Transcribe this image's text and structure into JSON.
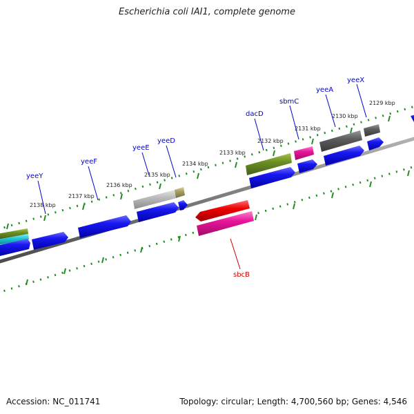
{
  "title": "Escherichia coli IAI1, complete genome",
  "footer": {
    "accession": "Accession: NC_011741",
    "summary": "Topology: circular; Length: 4,700,560 bp; Genes: 4,546"
  },
  "colors": {
    "backbone": "#808080",
    "tick": "#228B22",
    "label_top": "#0000CC",
    "label_bottom": "#CC0000",
    "blue_gene": "#0000EE",
    "olive": "#6B8E23",
    "magenta": "#E0149A",
    "gray_dark": "#5A5A5A",
    "gray_light": "#B8B8B8",
    "khaki": "#A8A060",
    "cyan": "#22C8D8",
    "red": "#EE0000"
  },
  "kbp_labels": [
    "2138 kbp",
    "2137 kbp",
    "2136 kbp",
    "2135 kbp",
    "2134 kbp",
    "2133 kbp",
    "2132 kbp",
    "2131 kbp",
    "2130 kbp",
    "2129 kbp"
  ],
  "gene_labels_top": [
    "yeeY",
    "yeeF",
    "yeeE",
    "yeeD",
    "dacD",
    "sbmC",
    "yeeA",
    "yeeX"
  ],
  "gene_labels_bottom": [
    "sbcB"
  ]
}
